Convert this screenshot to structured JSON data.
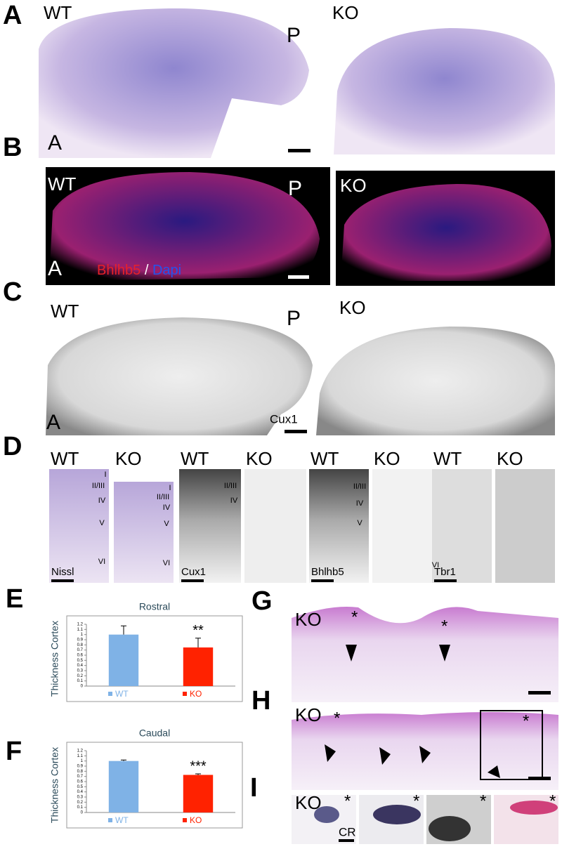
{
  "panels": {
    "A": {
      "label": "A",
      "wt": "WT",
      "ko": "KO",
      "posterior": "P",
      "anterior": "A"
    },
    "B": {
      "label": "B",
      "wt": "WT",
      "ko": "KO",
      "posterior": "P",
      "anterior": "A",
      "stain": "Bhlhb5",
      "separator": "/",
      "counterstain": "Dapi"
    },
    "C": {
      "label": "C",
      "wt": "WT",
      "ko": "KO",
      "posterior": "P",
      "anterior": "A",
      "stain": "Cux1"
    },
    "D": {
      "label": "D",
      "groups": [
        {
          "wt": "WT",
          "ko": "KO",
          "stain": "Nissl",
          "wt_layers": [
            "I",
            "II/III",
            "IV",
            "V",
            "VI"
          ],
          "ko_layers": [
            "I",
            "II/III",
            "IV",
            "V",
            "VI"
          ]
        },
        {
          "wt": "WT",
          "ko": "KO",
          "stain": "Cux1",
          "wt_layers": [
            "II/III",
            "IV"
          ]
        },
        {
          "wt": "WT",
          "ko": "KO",
          "stain": "Bhlhb5",
          "wt_layers": [
            "II/III",
            "IV",
            "V"
          ]
        },
        {
          "wt": "WT",
          "ko": "KO",
          "stain": "Tbr1",
          "wt_layers": [
            "VI"
          ]
        }
      ]
    },
    "E": {
      "label": "E",
      "chart": {
        "type": "bar",
        "title": "Rostral",
        "ylabel": "Thickness Cortex",
        "categories": [
          "WT",
          "KO"
        ],
        "values": [
          1,
          0.75
        ],
        "errors": [
          0.17,
          0.18
        ],
        "colors": [
          "#7fb2e6",
          "#ff2200"
        ],
        "significance": "**",
        "ylim": [
          0,
          1.2
        ],
        "yticks": [
          0,
          0.1,
          0.2,
          0.3,
          0.4,
          0.5,
          0.6,
          0.7,
          0.8,
          0.9,
          1,
          1.1,
          1.2
        ]
      }
    },
    "F": {
      "label": "F",
      "chart": {
        "type": "bar",
        "title": "Caudal",
        "ylabel": "Thickness Cortex",
        "categories": [
          "WT",
          "KO"
        ],
        "values": [
          1,
          0.73
        ],
        "errors": [
          0.02,
          0.02
        ],
        "colors": [
          "#7fb2e6",
          "#ff2200"
        ],
        "significance": "***",
        "ylim": [
          0,
          1.2
        ],
        "yticks": [
          0,
          0.1,
          0.2,
          0.3,
          0.4,
          0.5,
          0.6,
          0.7,
          0.8,
          0.9,
          1,
          1.1,
          1.2
        ]
      }
    },
    "G": {
      "label": "G",
      "ko": "KO",
      "stars": [
        "*",
        "*"
      ]
    },
    "H": {
      "label": "H",
      "ko": "KO",
      "stars": [
        "*",
        "*"
      ]
    },
    "I": {
      "label": "I",
      "ko": "KO",
      "stars": [
        "*",
        "*",
        "*",
        "*"
      ],
      "region": "CR"
    }
  }
}
